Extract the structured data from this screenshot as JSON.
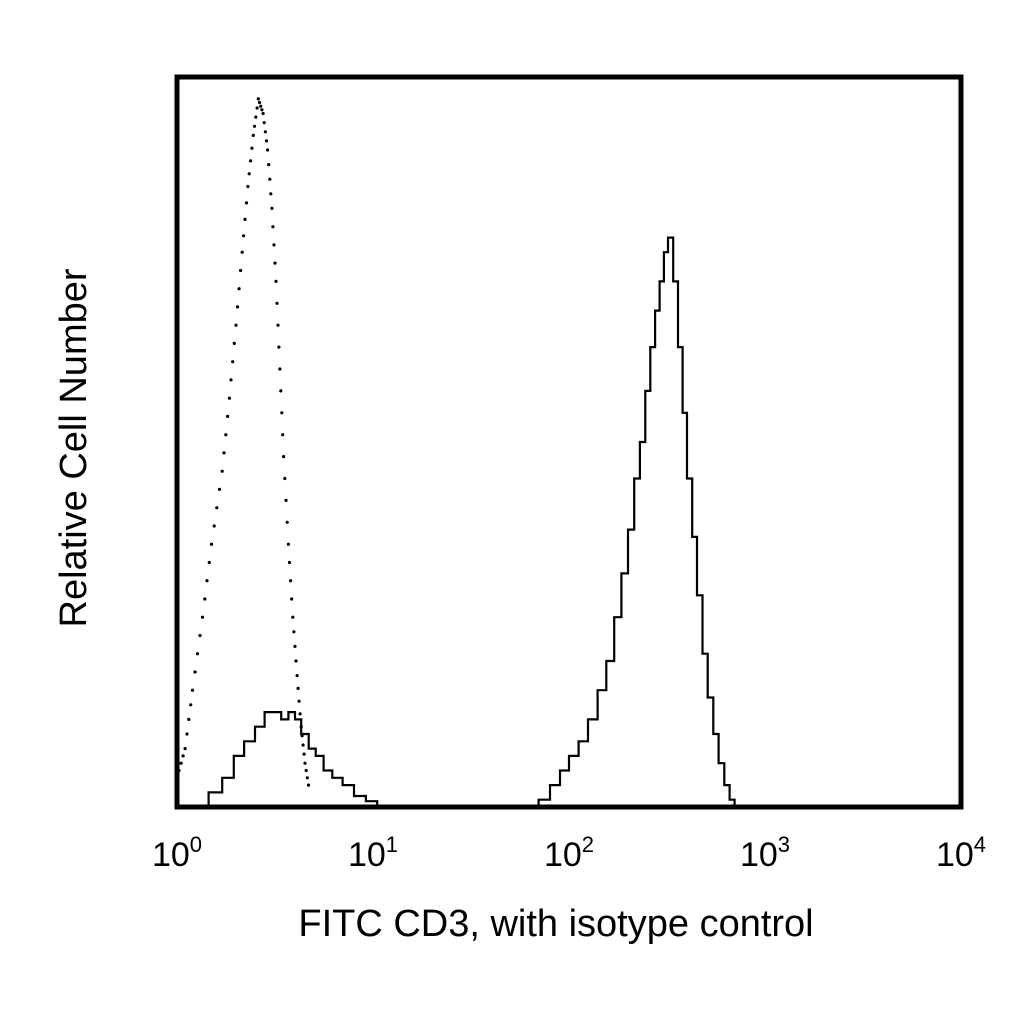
{
  "chart_data": {
    "type": "line",
    "title": "",
    "xlabel": "FITC CD3, with isotype control",
    "ylabel": "Relative Cell Number",
    "x_scale": "log",
    "xlim": [
      1,
      10000
    ],
    "ylim": [
      0,
      1
    ],
    "grid": false,
    "legend": "none",
    "x_ticks": [
      {
        "value": 1,
        "base": "10",
        "exp": "0"
      },
      {
        "value": 10,
        "base": "10",
        "exp": "1"
      },
      {
        "value": 100,
        "base": "10",
        "exp": "2"
      },
      {
        "value": 1000,
        "base": "10",
        "exp": "3"
      },
      {
        "value": 10000,
        "base": "10",
        "exp": "4"
      }
    ],
    "series": [
      {
        "style": "dotted",
        "color": "#000000",
        "x": [
          1.0,
          1.1,
          1.2,
          1.35,
          1.5,
          1.7,
          1.85,
          2.0,
          2.15,
          2.3,
          2.45,
          2.6,
          2.75,
          2.9,
          3.05,
          3.2,
          3.35,
          3.5,
          3.7,
          3.9,
          4.1,
          4.3,
          4.5,
          4.75
        ],
        "y": [
          0.04,
          0.08,
          0.16,
          0.26,
          0.36,
          0.46,
          0.56,
          0.66,
          0.76,
          0.85,
          0.92,
          0.97,
          0.95,
          0.9,
          0.82,
          0.72,
          0.6,
          0.48,
          0.36,
          0.26,
          0.18,
          0.11,
          0.06,
          0.02
        ]
      },
      {
        "style": "solid",
        "color": "#000000",
        "x": [
          1.25,
          1.45,
          1.7,
          1.95,
          2.2,
          2.5,
          2.8,
          3.1,
          3.4,
          3.7,
          4.0,
          4.3,
          4.7,
          5.1,
          5.6,
          6.2,
          7.0,
          8.0,
          9.2,
          10.5
        ],
        "y": [
          0.0,
          0.02,
          0.04,
          0.07,
          0.09,
          0.11,
          0.13,
          0.13,
          0.12,
          0.13,
          0.12,
          0.1,
          0.08,
          0.07,
          0.05,
          0.04,
          0.03,
          0.015,
          0.008,
          0.002
        ]
      },
      {
        "style": "solid",
        "color": "#000000",
        "x": [
          62,
          70,
          80,
          90,
          100,
          112,
          125,
          140,
          155,
          170,
          185,
          200,
          215,
          230,
          245,
          260,
          275,
          290,
          305,
          320,
          340,
          360,
          380,
          400,
          425,
          450,
          480,
          510,
          545,
          580,
          620,
          660,
          700
        ],
        "y": [
          0.0,
          0.01,
          0.03,
          0.05,
          0.07,
          0.09,
          0.12,
          0.16,
          0.2,
          0.26,
          0.32,
          0.38,
          0.45,
          0.5,
          0.57,
          0.63,
          0.68,
          0.72,
          0.76,
          0.78,
          0.72,
          0.63,
          0.54,
          0.45,
          0.37,
          0.29,
          0.21,
          0.15,
          0.1,
          0.06,
          0.03,
          0.01,
          0.0
        ]
      }
    ]
  }
}
